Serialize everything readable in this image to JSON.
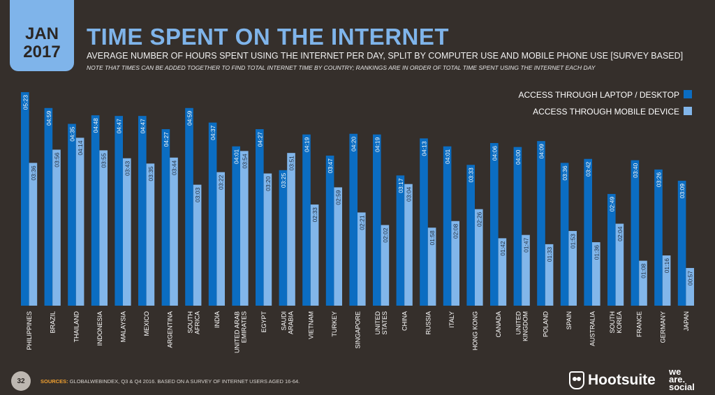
{
  "date": {
    "month": "JAN",
    "year": "2017"
  },
  "title": "TIME SPENT ON THE INTERNET",
  "subtitle": "AVERAGE NUMBER OF HOURS SPENT USING THE INTERNET PER DAY, SPLIT BY COMPUTER USE AND MOBILE PHONE USE [SURVEY BASED]",
  "note": "NOTE THAT TIMES CAN BE ADDED TOGETHER TO FIND TOTAL INTERNET TIME BY COUNTRY; RANKINGS ARE IN ORDER OF TOTAL TIME SPENT USING THE INTERNET EACH DAY",
  "footer": {
    "page_number": "32",
    "sources_label": "SOURCES:",
    "sources_text": "GLOBALWEBINDEX, Q3 & Q4 2016. BASED ON A SURVEY OF INTERNET USERS AGED 16-64.",
    "brand_hootsuite": "Hootsuite",
    "brand_wearesocial": "we are social"
  },
  "colors": {
    "desktop": "#0b6dc2",
    "mobile": "#82b6ea",
    "background": "#352f2b",
    "accent": "#7fb4ea"
  },
  "chart_data": {
    "type": "bar",
    "orientation": "vertical-grouped",
    "unit": "hh:mm",
    "ylim": [
      "00:00",
      "06:00"
    ],
    "grid": false,
    "legend_position": "top-right",
    "categories": [
      "PHILIPPINES",
      "BRAZIL",
      "THAILAND",
      "INDONESIA",
      "MALAYSIA",
      "MEXICO",
      "ARGENTINA",
      "SOUTH AFRICA",
      "INDIA",
      "UNITED ARAB EMIRATES",
      "EGYPT",
      "SAUDI ARABIA",
      "VIETNAM",
      "TURKEY",
      "SINGAPORE",
      "UNITED STATES",
      "CHINA",
      "RUSSIA",
      "ITALY",
      "HONG KONG",
      "CANADA",
      "UNITED KINGDOM",
      "POLAND",
      "SPAIN",
      "AUSTRALIA",
      "SOUTH KOREA",
      "FRANCE",
      "GERMANY",
      "JAPAN"
    ],
    "category_lines": [
      [
        "PHILIPPINES"
      ],
      [
        "BRAZIL"
      ],
      [
        "THAILAND"
      ],
      [
        "INDONESIA"
      ],
      [
        "MALAYSIA"
      ],
      [
        "MEXICO"
      ],
      [
        "ARGENTINA"
      ],
      [
        "SOUTH",
        "AFRICA"
      ],
      [
        "INDIA"
      ],
      [
        "UNITED ARAB",
        "EMIRATES"
      ],
      [
        "EGYPT"
      ],
      [
        "SAUDI",
        "ARABIA"
      ],
      [
        "VIETNAM"
      ],
      [
        "TURKEY"
      ],
      [
        "SINGAPORE"
      ],
      [
        "UNITED",
        "STATES"
      ],
      [
        "CHINA"
      ],
      [
        "RUSSIA"
      ],
      [
        "ITALY"
      ],
      [
        "HONG KONG"
      ],
      [
        "CANADA"
      ],
      [
        "UNITED",
        "KINGDOM"
      ],
      [
        "POLAND"
      ],
      [
        "SPAIN"
      ],
      [
        "AUSTRALIA"
      ],
      [
        "SOUTH",
        "KOREA"
      ],
      [
        "FRANCE"
      ],
      [
        "GERMANY"
      ],
      [
        "JAPAN"
      ]
    ],
    "series": [
      {
        "name": "ACCESS THROUGH LAPTOP / DESKTOP",
        "color": "#0b6dc2",
        "values": [
          "05:23",
          "04:59",
          "04:35",
          "04:48",
          "04:47",
          "04:47",
          "04:27",
          "04:59",
          "04:37",
          "04:01",
          "04:27",
          "03:25",
          "04:19",
          "03:47",
          "04:20",
          "04:19",
          "03:17",
          "04:13",
          "04:01",
          "03:33",
          "04:06",
          "04:00",
          "04:09",
          "03:36",
          "03:42",
          "02:49",
          "03:40",
          "03:26",
          "03:09"
        ]
      },
      {
        "name": "ACCESS THROUGH MOBILE DEVICE",
        "color": "#82b6ea",
        "values": [
          "03:36",
          "03:56",
          "04:14",
          "03:55",
          "03:43",
          "03:35",
          "03:44",
          "03:03",
          "03:22",
          "03:54",
          "03:20",
          "03:51",
          "02:33",
          "02:59",
          "02:21",
          "02:02",
          "03:04",
          "01:58",
          "02:08",
          "02:26",
          "01:42",
          "01:47",
          "01:33",
          "01:53",
          "01:36",
          "02:04",
          "01:08",
          "01:16",
          "00:57"
        ]
      }
    ]
  }
}
